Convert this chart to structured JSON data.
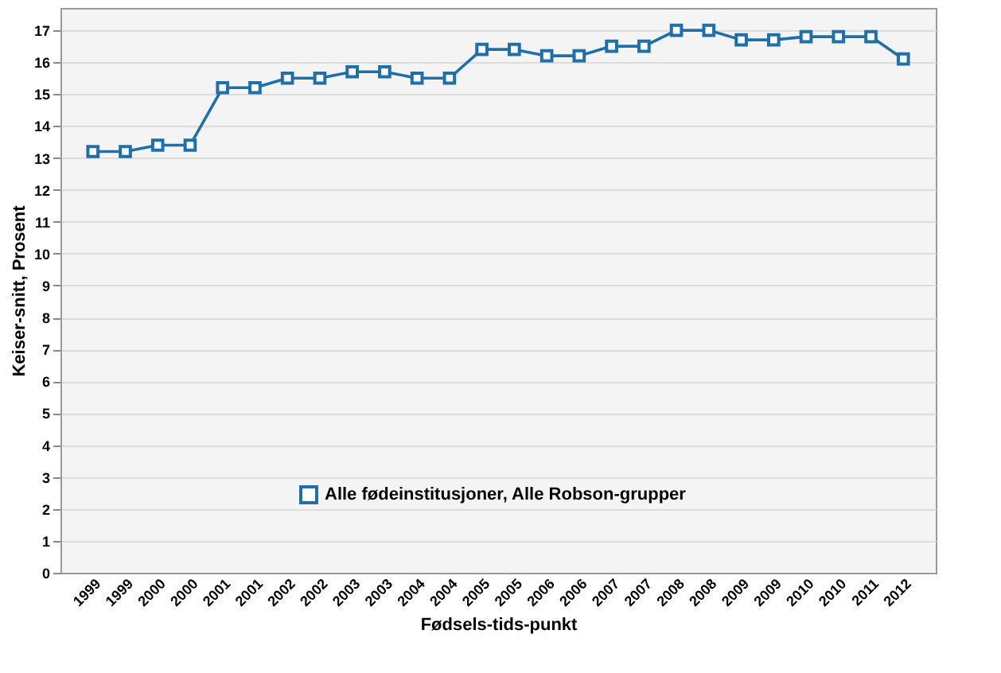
{
  "chart_data": {
    "type": "line",
    "xlabel": "Fødsels-tids-punkt",
    "ylabel": "Keiser-snitt, Prosent",
    "categories": [
      "1999",
      "1999",
      "2000",
      "2000",
      "2001",
      "2001",
      "2002",
      "2002",
      "2003",
      "2003",
      "2004",
      "2004",
      "2005",
      "2005",
      "2006",
      "2006",
      "2007",
      "2007",
      "2008",
      "2008",
      "2009",
      "2009",
      "2010",
      "2010",
      "2011",
      "2012"
    ],
    "series": [
      {
        "name": "Alle fødeinstitusjoner, Alle Robson-grupper",
        "color": "#1f6fa8",
        "values": [
          13.2,
          13.2,
          13.4,
          13.4,
          15.2,
          15.2,
          15.5,
          15.5,
          15.7,
          15.7,
          15.5,
          15.5,
          16.4,
          16.4,
          16.2,
          16.2,
          16.5,
          16.5,
          17.0,
          17.0,
          16.7,
          16.7,
          16.8,
          16.8,
          16.8,
          16.1
        ]
      }
    ],
    "ylim": [
      0,
      17.7
    ],
    "yticks": [
      0,
      1,
      2,
      3,
      4,
      5,
      6,
      7,
      8,
      9,
      10,
      11,
      12,
      13,
      14,
      15,
      16,
      17
    ],
    "grid": "y",
    "legend": "bottom",
    "marker": "square",
    "line_style": "solid"
  }
}
